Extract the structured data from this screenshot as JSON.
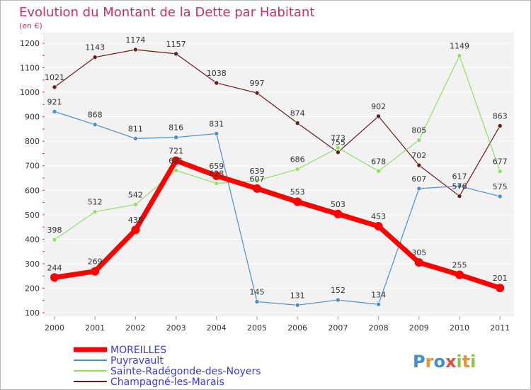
{
  "chart_data": {
    "type": "line",
    "title": "Evolution du Montant de la Dette par Habitant",
    "subtitle": "(en €)",
    "x": [
      "2000",
      "2001",
      "2002",
      "2003",
      "2004",
      "2005",
      "2006",
      "2007",
      "2008",
      "2009",
      "2010",
      "2011"
    ],
    "yticks": [
      "100",
      "200",
      "300",
      "400",
      "500",
      "600",
      "700",
      "800",
      "900",
      "1000",
      "1100",
      "1200"
    ],
    "ylim": [
      100,
      1200
    ],
    "grid": "horizontal",
    "legend_position": "bottom-left",
    "series": [
      {
        "name": "MOREILLES",
        "color": "#ff0000",
        "values": [
          244,
          269,
          438,
          721,
          659,
          607,
          553,
          503,
          453,
          305,
          255,
          201
        ]
      },
      {
        "name": "Puyravault",
        "color": "#4a90c8",
        "values": [
          921,
          868,
          811,
          816,
          831,
          145,
          131,
          152,
          134,
          607,
          617,
          575
        ]
      },
      {
        "name": "Sainte-Radégonde-des-Noyers",
        "color": "#8ee060",
        "values": [
          398,
          512,
          542,
          681,
          628,
          639,
          686,
          773,
          678,
          805,
          1149,
          677
        ]
      },
      {
        "name": "Champagné-les-Marais",
        "color": "#6b1a1a",
        "values": [
          1021,
          1143,
          1174,
          1157,
          1038,
          997,
          874,
          755,
          902,
          702,
          576,
          863
        ]
      }
    ]
  },
  "logo": {
    "letters": [
      "P",
      "r",
      "o",
      "x",
      "i",
      "t",
      "i"
    ],
    "colors": [
      "#3d8fd9",
      "#f0932b",
      "#3d8fd9",
      "#e84a3c",
      "#8cc63f",
      "#f0932b",
      "#8cc63f"
    ]
  }
}
